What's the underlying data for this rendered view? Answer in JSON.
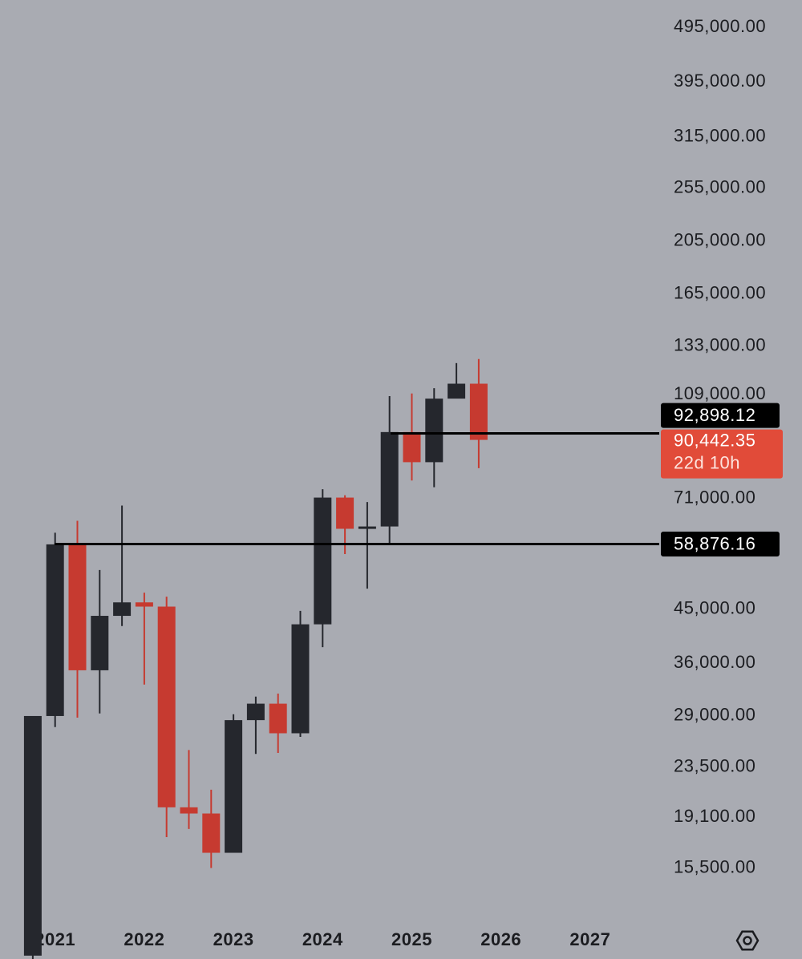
{
  "chart_data": {
    "type": "candlestick",
    "log_scale": true,
    "categories": [
      null,
      "2021",
      null,
      null,
      null,
      "2022",
      null,
      null,
      null,
      "2023",
      null,
      null,
      null,
      "2024",
      null,
      null,
      null,
      "2025",
      null,
      null,
      null,
      "2026",
      null,
      null,
      null,
      "2027",
      null
    ],
    "open": [
      10800,
      28990,
      58800,
      35000,
      43800,
      46300,
      45500,
      19900,
      19400,
      16500,
      28500,
      30500,
      27000,
      42300,
      71300,
      62700,
      63300,
      93400,
      82500,
      107200,
      114000,
      null,
      null,
      null,
      null,
      null,
      null
    ],
    "high": [
      28990,
      61700,
      64800,
      52900,
      69000,
      48200,
      47400,
      25200,
      21400,
      29200,
      31400,
      31800,
      44700,
      73800,
      72000,
      70000,
      108300,
      109500,
      111900,
      124100,
      126200,
      null,
      null,
      null,
      null,
      null,
      null
    ],
    "low": [
      10400,
      27700,
      28800,
      29300,
      42000,
      33000,
      17600,
      18200,
      15500,
      16500,
      24800,
      24900,
      26600,
      38500,
      56500,
      49000,
      58900,
      76500,
      74400,
      107300,
      80500,
      null,
      null,
      null,
      null,
      null,
      null
    ],
    "close": [
      28990,
      58800,
      35000,
      43800,
      46300,
      45500,
      19900,
      19400,
      16500,
      28500,
      30500,
      27000,
      42300,
      71300,
      62700,
      63300,
      93400,
      82500,
      107200,
      114000,
      90442.35,
      null,
      null,
      null,
      null,
      null,
      null
    ],
    "up_color": "#25272d",
    "down_color": "#c63a30",
    "ylim": [
      12400,
      554000
    ],
    "yticks": [
      {
        "value": 495000,
        "label": "495,000.00"
      },
      {
        "value": 395000,
        "label": "395,000.00"
      },
      {
        "value": 315000,
        "label": "315,000.00"
      },
      {
        "value": 255000,
        "label": "255,000.00"
      },
      {
        "value": 205000,
        "label": "205,000.00"
      },
      {
        "value": 165000,
        "label": "165,000.00"
      },
      {
        "value": 133000,
        "label": "133,000.00"
      },
      {
        "value": 109000,
        "label": "109,000.00"
      },
      {
        "value": 71000,
        "label": "71,000.00"
      },
      {
        "value": 45000,
        "label": "45,000.00"
      },
      {
        "value": 36000,
        "label": "36,000.00"
      },
      {
        "value": 29000,
        "label": "29,000.00"
      },
      {
        "value": 23500,
        "label": "23,500.00"
      },
      {
        "value": 19100,
        "label": "19,100.00"
      },
      {
        "value": 15500,
        "label": "15,500.00"
      }
    ],
    "levels": [
      {
        "value": 92898.12,
        "label": "92,898.12"
      },
      {
        "value": 58876.16,
        "label": "58,876.16"
      }
    ],
    "last_price": {
      "value": 90442.35,
      "label": "90,442.35"
    },
    "countdown": "22d 10h"
  }
}
